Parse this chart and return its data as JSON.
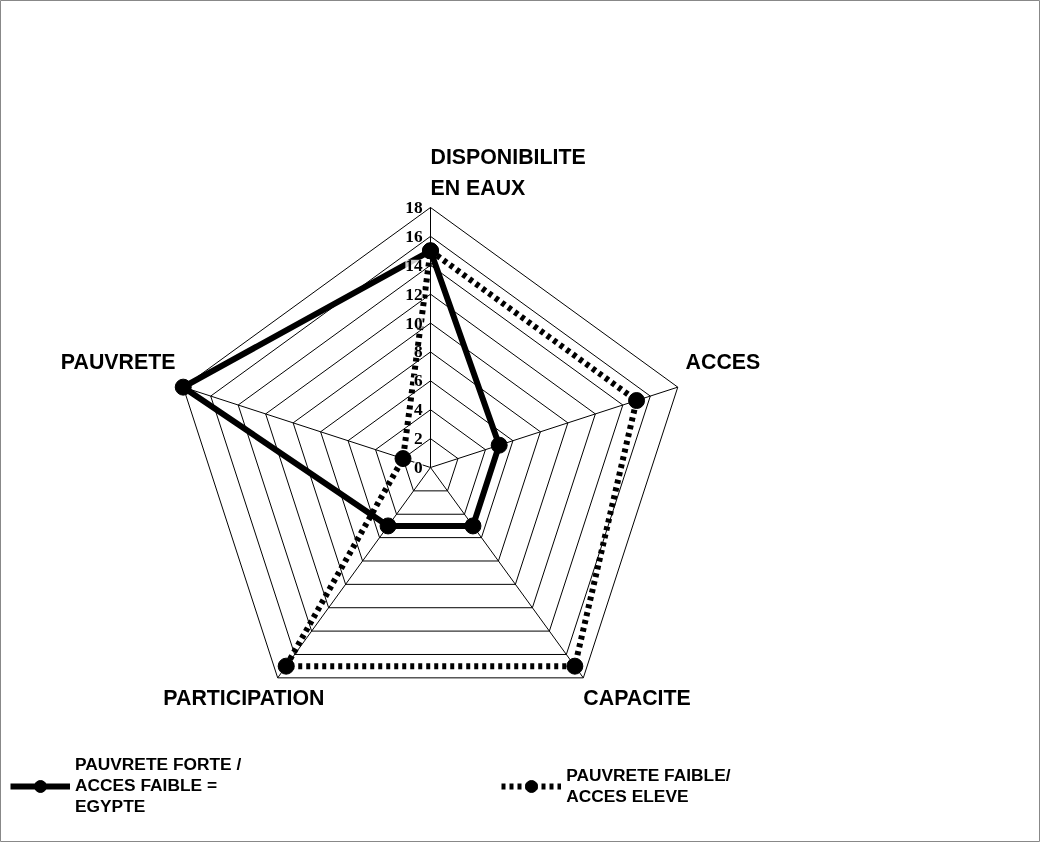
{
  "chart_data": {
    "type": "radar",
    "categories": [
      "DISPONIBILITE EN EAUX",
      "ACCES",
      "CAPACITE",
      "PARTICIPATION",
      "PAUVRETE"
    ],
    "series": [
      {
        "name": "PAUVRETE FORTE / ACCES FAIBLE = EGYPTE",
        "color": "#000000",
        "line_style": "solid",
        "values": [
          15,
          5,
          5,
          5,
          18
        ]
      },
      {
        "name": "PAUVRETE FAIBLE/ ACCES ELEVE",
        "color": "#000000",
        "line_style": "dotted",
        "values": [
          15,
          15,
          17,
          17,
          2
        ]
      }
    ],
    "ylim": [
      0,
      18
    ],
    "yticks": [
      0,
      2,
      4,
      6,
      8,
      10,
      12,
      14,
      16,
      18
    ],
    "grid": true,
    "marker": "circle",
    "legend": "bottom"
  }
}
